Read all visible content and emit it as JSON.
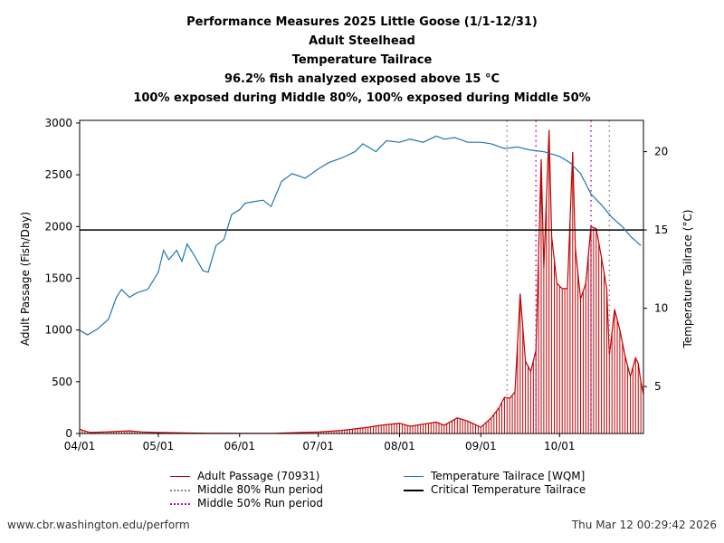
{
  "titles": [
    "Performance Measures 2025 Little Goose (1/1-12/31)",
    "Adult Steelhead",
    "Temperature Tailrace",
    "96.2% fish analyzed exposed above 15 °C",
    "100% exposed during Middle 80%, 100% exposed during Middle 50%"
  ],
  "footer": {
    "url": "www.cbr.washington.edu/perform",
    "timestamp": "Thu Mar 12 00:29:42 2026"
  },
  "legend": {
    "passage": "Adult Passage (70931)",
    "middle80": "Middle 80% Run period",
    "middle50": "Middle 50% Run period",
    "temperature": "Temperature Tailrace [WQM]",
    "critical": "Critical Temperature Tailrace"
  },
  "colors": {
    "passage": "#c00000",
    "temperature": "#1f77b4",
    "critical": "#000000",
    "middle80": "#888888",
    "middle50": "#c000c0"
  },
  "chart_data": {
    "type": "line",
    "xlabel": "",
    "ylabel": "Adult Passage (Fish/Day)",
    "y2label": "Temperature Tailrace (°C)",
    "xlim": [
      "2025-04-01",
      "2025-10-31"
    ],
    "ylim": [
      0,
      3000
    ],
    "y2lim": [
      2.0,
      22.0
    ],
    "x_ticks": [
      "04/01",
      "05/01",
      "06/01",
      "07/01",
      "08/01",
      "09/01",
      "10/01"
    ],
    "y_ticks": [
      0,
      500,
      1000,
      1500,
      2000,
      2500,
      3000
    ],
    "y2_ticks": [
      5,
      10,
      15,
      20
    ],
    "critical_temperature": 15,
    "middle80_dates": [
      "2025-09-11",
      "2025-10-20"
    ],
    "middle50_dates": [
      "2025-09-22",
      "2025-10-13"
    ],
    "passage_series": {
      "name": "Adult Passage (70931)",
      "points": [
        [
          "2025-04-01",
          40
        ],
        [
          "2025-04-05",
          10
        ],
        [
          "2025-04-10",
          15
        ],
        [
          "2025-04-15",
          20
        ],
        [
          "2025-04-20",
          25
        ],
        [
          "2025-04-25",
          15
        ],
        [
          "2025-05-01",
          10
        ],
        [
          "2025-05-10",
          5
        ],
        [
          "2025-05-20",
          3
        ],
        [
          "2025-06-01",
          2
        ],
        [
          "2025-06-15",
          3
        ],
        [
          "2025-07-01",
          15
        ],
        [
          "2025-07-10",
          30
        ],
        [
          "2025-07-20",
          60
        ],
        [
          "2025-07-25",
          80
        ],
        [
          "2025-08-01",
          100
        ],
        [
          "2025-08-05",
          70
        ],
        [
          "2025-08-10",
          90
        ],
        [
          "2025-08-15",
          110
        ],
        [
          "2025-08-18",
          80
        ],
        [
          "2025-08-23",
          150
        ],
        [
          "2025-08-27",
          120
        ],
        [
          "2025-09-01",
          60
        ],
        [
          "2025-09-05",
          150
        ],
        [
          "2025-09-08",
          250
        ],
        [
          "2025-09-10",
          350
        ],
        [
          "2025-09-12",
          340
        ],
        [
          "2025-09-14",
          400
        ],
        [
          "2025-09-16",
          1350
        ],
        [
          "2025-09-18",
          700
        ],
        [
          "2025-09-20",
          600
        ],
        [
          "2025-09-22",
          800
        ],
        [
          "2025-09-24",
          2650
        ],
        [
          "2025-09-25",
          1600
        ],
        [
          "2025-09-27",
          2930
        ],
        [
          "2025-09-28",
          1900
        ],
        [
          "2025-09-30",
          1450
        ],
        [
          "2025-10-02",
          1400
        ],
        [
          "2025-10-04",
          1400
        ],
        [
          "2025-10-06",
          2720
        ],
        [
          "2025-10-07",
          1800
        ],
        [
          "2025-10-09",
          1300
        ],
        [
          "2025-10-11",
          1450
        ],
        [
          "2025-10-13",
          2000
        ],
        [
          "2025-10-15",
          1980
        ],
        [
          "2025-10-17",
          1700
        ],
        [
          "2025-10-19",
          1400
        ],
        [
          "2025-10-20",
          750
        ],
        [
          "2025-10-22",
          1200
        ],
        [
          "2025-10-24",
          1000
        ],
        [
          "2025-10-26",
          750
        ],
        [
          "2025-10-28",
          550
        ],
        [
          "2025-10-30",
          730
        ],
        [
          "2025-10-31",
          680
        ],
        [
          "2025-11-01",
          500
        ],
        [
          "2025-11-02",
          380
        ]
      ]
    },
    "temperature_series": {
      "name": "Temperature Tailrace [WQM]",
      "points": [
        [
          "2025-04-01",
          8.6
        ],
        [
          "2025-04-04",
          8.3
        ],
        [
          "2025-04-08",
          8.7
        ],
        [
          "2025-04-12",
          9.3
        ],
        [
          "2025-04-15",
          10.7
        ],
        [
          "2025-04-17",
          11.2
        ],
        [
          "2025-04-20",
          10.7
        ],
        [
          "2025-04-23",
          11.0
        ],
        [
          "2025-04-27",
          11.2
        ],
        [
          "2025-05-01",
          12.3
        ],
        [
          "2025-05-03",
          13.7
        ],
        [
          "2025-05-05",
          13.1
        ],
        [
          "2025-05-08",
          13.7
        ],
        [
          "2025-05-10",
          13.0
        ],
        [
          "2025-05-12",
          14.1
        ],
        [
          "2025-05-15",
          13.3
        ],
        [
          "2025-05-18",
          12.4
        ],
        [
          "2025-05-20",
          12.3
        ],
        [
          "2025-05-23",
          14.0
        ],
        [
          "2025-05-26",
          14.4
        ],
        [
          "2025-05-29",
          16.0
        ],
        [
          "2025-06-01",
          16.3
        ],
        [
          "2025-06-03",
          16.7
        ],
        [
          "2025-06-06",
          16.8
        ],
        [
          "2025-06-10",
          16.9
        ],
        [
          "2025-06-13",
          16.5
        ],
        [
          "2025-06-17",
          18.1
        ],
        [
          "2025-06-21",
          18.6
        ],
        [
          "2025-06-26",
          18.3
        ],
        [
          "2025-07-01",
          18.9
        ],
        [
          "2025-07-05",
          19.3
        ],
        [
          "2025-07-10",
          19.6
        ],
        [
          "2025-07-15",
          20.0
        ],
        [
          "2025-07-18",
          20.5
        ],
        [
          "2025-07-23",
          20.0
        ],
        [
          "2025-07-27",
          20.7
        ],
        [
          "2025-08-01",
          20.6
        ],
        [
          "2025-08-05",
          20.8
        ],
        [
          "2025-08-10",
          20.6
        ],
        [
          "2025-08-15",
          21.0
        ],
        [
          "2025-08-18",
          20.8
        ],
        [
          "2025-08-22",
          20.9
        ],
        [
          "2025-08-27",
          20.6
        ],
        [
          "2025-09-01",
          20.6
        ],
        [
          "2025-09-05",
          20.5
        ],
        [
          "2025-09-10",
          20.2
        ],
        [
          "2025-09-15",
          20.3
        ],
        [
          "2025-09-20",
          20.1
        ],
        [
          "2025-09-25",
          20.0
        ],
        [
          "2025-10-01",
          19.7
        ],
        [
          "2025-10-05",
          19.3
        ],
        [
          "2025-10-09",
          18.6
        ],
        [
          "2025-10-13",
          17.3
        ],
        [
          "2025-10-17",
          16.6
        ],
        [
          "2025-10-21",
          15.8
        ],
        [
          "2025-10-25",
          15.2
        ],
        [
          "2025-10-28",
          14.6
        ],
        [
          "2025-11-01",
          14.0
        ]
      ]
    }
  }
}
